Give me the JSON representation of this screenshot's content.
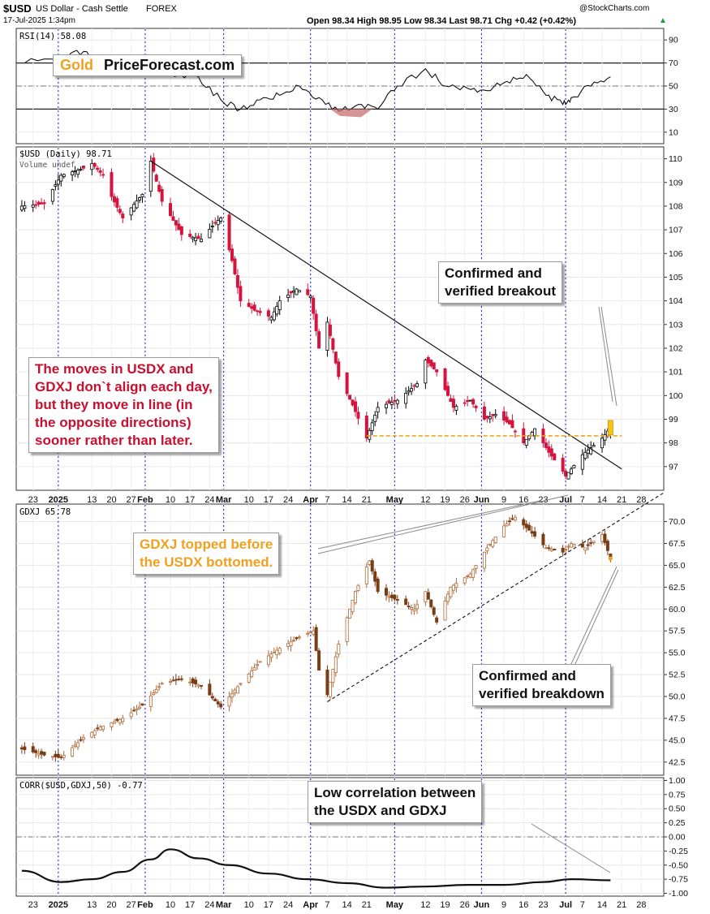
{
  "header": {
    "symbol": "$USD",
    "name": "US Dollar - Cash Settle",
    "exchange": "FOREX",
    "datetime": "17-Jul-2025 1:34pm",
    "source": "@StockCharts.com",
    "quote": "Open 98.34  High 98.95  Low 98.34  Last 98.71  Chg +0.42 (+0.42%)",
    "quote_arrow": "▲"
  },
  "logo": {
    "gold": "Gold",
    "site": "PriceForecast.com"
  },
  "annotations": {
    "moves": "The moves in USDX and\nGDXJ don`t align each day,\nbut they move in line (in\nthe opposite directions)\nsooner rather than later.",
    "breakout": "Confirmed and\nverified breakout",
    "gdxj_topped": "GDXJ topped before\nthe USDX bottomed.",
    "breakdown": "Confirmed and\nverified breakdown",
    "corr_note": "Low correlation between\nthe USDX and GDXJ"
  },
  "colors": {
    "up": "#000000",
    "down": "#d4143c",
    "gdxj_up": "#b06a38",
    "gdxj_down": "#7a3c14",
    "dashed_support": "#f0a020",
    "vline": "#2a2ae0",
    "moves_text": "#c8102e",
    "gdxj_text": "#f0a020",
    "rsi_fill": "#c87070"
  },
  "chart_data": [
    {
      "type": "line",
      "panel": "RSI",
      "title": "RSI(14) 58.08",
      "ylim": [
        0,
        100
      ],
      "yticks": [
        10,
        30,
        50,
        70,
        90
      ],
      "reference_lines": [
        30,
        50,
        70
      ],
      "x": [
        "2024-12-20",
        "2025-01-03",
        "2025-01-10",
        "2025-01-17",
        "2025-01-24",
        "2025-02-03",
        "2025-02-10",
        "2025-02-20",
        "2025-02-28",
        "2025-03-07",
        "2025-03-14",
        "2025-03-21",
        "2025-03-28",
        "2025-04-04",
        "2025-04-11",
        "2025-04-18",
        "2025-04-25",
        "2025-05-02",
        "2025-05-12",
        "2025-05-19",
        "2025-05-27",
        "2025-06-03",
        "2025-06-10",
        "2025-06-17",
        "2025-06-24",
        "2025-06-30",
        "2025-07-03",
        "2025-07-10",
        "2025-07-17"
      ],
      "values": [
        70,
        74,
        80,
        66,
        64,
        69,
        60,
        58,
        38,
        30,
        38,
        42,
        50,
        40,
        28,
        34,
        30,
        50,
        65,
        50,
        48,
        46,
        54,
        60,
        42,
        34,
        40,
        50,
        58
      ]
    },
    {
      "type": "candlestick",
      "panel": "$USD",
      "title": "$USD (Daily) 98.71",
      "subtitle": "Volume undef",
      "ylim": [
        96,
        110.5
      ],
      "yticks": [
        97,
        98,
        99,
        100,
        101,
        102,
        103,
        104,
        105,
        106,
        107,
        108,
        109,
        110
      ],
      "path": [
        [
          "2024-12-19",
          108.0
        ],
        [
          "2024-12-27",
          108.1
        ],
        [
          "2025-01-02",
          109.3
        ],
        [
          "2025-01-10",
          109.6
        ],
        [
          "2025-01-13",
          109.8
        ],
        [
          "2025-01-17",
          109.3
        ],
        [
          "2025-01-20",
          108.4
        ],
        [
          "2025-01-24",
          107.5
        ],
        [
          "2025-01-31",
          108.5
        ],
        [
          "2025-02-03",
          109.9
        ],
        [
          "2025-02-07",
          108.2
        ],
        [
          "2025-02-14",
          106.8
        ],
        [
          "2025-02-21",
          106.6
        ],
        [
          "2025-02-26",
          107.3
        ],
        [
          "2025-02-28",
          107.5
        ],
        [
          "2025-03-04",
          105.7
        ],
        [
          "2025-03-07",
          104.0
        ],
        [
          "2025-03-12",
          103.6
        ],
        [
          "2025-03-18",
          103.3
        ],
        [
          "2025-03-21",
          104.0
        ],
        [
          "2025-03-27",
          104.5
        ],
        [
          "2025-04-01",
          104.2
        ],
        [
          "2025-04-04",
          102.0
        ],
        [
          "2025-04-07",
          103.1
        ],
        [
          "2025-04-11",
          100.8
        ],
        [
          "2025-04-16",
          99.6
        ],
        [
          "2025-04-21",
          98.2
        ],
        [
          "2025-04-25",
          99.5
        ],
        [
          "2025-05-02",
          99.8
        ],
        [
          "2025-05-09",
          100.5
        ],
        [
          "2025-05-12",
          101.5
        ],
        [
          "2025-05-16",
          101.0
        ],
        [
          "2025-05-22",
          99.5
        ],
        [
          "2025-05-28",
          99.8
        ],
        [
          "2025-06-02",
          99.0
        ],
        [
          "2025-06-06",
          99.2
        ],
        [
          "2025-06-11",
          98.8
        ],
        [
          "2025-06-16",
          98.0
        ],
        [
          "2025-06-20",
          98.6
        ],
        [
          "2025-06-25",
          97.6
        ],
        [
          "2025-06-30",
          96.8
        ],
        [
          "2025-07-01",
          96.6
        ],
        [
          "2025-07-07",
          97.5
        ],
        [
          "2025-07-10",
          97.8
        ],
        [
          "2025-07-14",
          98.2
        ],
        [
          "2025-07-16",
          98.5
        ],
        [
          "2025-07-17",
          98.71
        ]
      ],
      "trendline": [
        [
          "2025-02-03",
          109.9
        ],
        [
          "2025-07-21",
          96.9
        ]
      ],
      "support_line": {
        "value": 98.3,
        "from": "2025-04-21",
        "to": "2025-07-21"
      }
    },
    {
      "type": "candlestick",
      "panel": "GDXJ",
      "title": "GDXJ 65.78",
      "ylim": [
        41,
        72
      ],
      "yticks": [
        42.5,
        45.0,
        47.5,
        50.0,
        52.5,
        55.0,
        57.5,
        60.0,
        62.5,
        65.0,
        67.5,
        70.0
      ],
      "path": [
        [
          "2024-12-19",
          44.0
        ],
        [
          "2024-12-27",
          43.3
        ],
        [
          "2025-01-02",
          43.0
        ],
        [
          "2025-01-10",
          45.3
        ],
        [
          "2025-01-16",
          46.5
        ],
        [
          "2025-01-24",
          47.5
        ],
        [
          "2025-01-31",
          49.0
        ],
        [
          "2025-02-07",
          51.5
        ],
        [
          "2025-02-14",
          52.0
        ],
        [
          "2025-02-21",
          51.2
        ],
        [
          "2025-02-28",
          48.8
        ],
        [
          "2025-03-07",
          51.5
        ],
        [
          "2025-03-14",
          54.0
        ],
        [
          "2025-03-21",
          55.5
        ],
        [
          "2025-03-28",
          56.8
        ],
        [
          "2025-04-02",
          57.5
        ],
        [
          "2025-04-04",
          53.0
        ],
        [
          "2025-04-07",
          50.2
        ],
        [
          "2025-04-11",
          56.0
        ],
        [
          "2025-04-17",
          62.0
        ],
        [
          "2025-04-22",
          65.5
        ],
        [
          "2025-04-25",
          62.0
        ],
        [
          "2025-05-02",
          61.0
        ],
        [
          "2025-05-08",
          60.0
        ],
        [
          "2025-05-12",
          62.0
        ],
        [
          "2025-05-16",
          58.5
        ],
        [
          "2025-05-21",
          62.5
        ],
        [
          "2025-05-28",
          64.0
        ],
        [
          "2025-06-03",
          67.0
        ],
        [
          "2025-06-09",
          69.5
        ],
        [
          "2025-06-13",
          70.5
        ],
        [
          "2025-06-18",
          69.0
        ],
        [
          "2025-06-24",
          67.0
        ],
        [
          "2025-06-30",
          66.5
        ],
        [
          "2025-07-03",
          67.5
        ],
        [
          "2025-07-08",
          67.0
        ],
        [
          "2025-07-14",
          68.5
        ],
        [
          "2025-07-17",
          65.78
        ]
      ],
      "trendline": [
        [
          "2025-04-07",
          49.4
        ],
        [
          "2025-08-01",
          72.5
        ]
      ]
    },
    {
      "type": "line",
      "panel": "CORR",
      "title": "CORR($USD,GDXJ,50) -0.77",
      "ylim": [
        -1.05,
        1.05
      ],
      "yticks": [
        1.0,
        0.75,
        0.5,
        0.25,
        0.0,
        -0.25,
        -0.5,
        -0.75,
        -1.0
      ],
      "reference_lines": [
        0
      ],
      "x": [
        "2024-12-19",
        "2025-01-02",
        "2025-01-13",
        "2025-01-24",
        "2025-02-03",
        "2025-02-10",
        "2025-02-20",
        "2025-03-03",
        "2025-03-17",
        "2025-03-31",
        "2025-04-14",
        "2025-04-28",
        "2025-05-12",
        "2025-05-27",
        "2025-06-09",
        "2025-06-23",
        "2025-07-03",
        "2025-07-17"
      ],
      "values": [
        -0.6,
        -0.8,
        -0.75,
        -0.62,
        -0.4,
        -0.22,
        -0.38,
        -0.5,
        -0.65,
        -0.75,
        -0.82,
        -0.9,
        -0.88,
        -0.85,
        -0.85,
        -0.8,
        -0.75,
        -0.77
      ]
    }
  ],
  "x_axis_labels": [
    "23",
    "2025",
    "13",
    "20",
    "27",
    "Feb",
    "10",
    "17",
    "24",
    "Mar",
    "10",
    "17",
    "24",
    "Apr",
    "7",
    "14",
    "21",
    "May",
    "12",
    "19",
    "26",
    "Jun",
    "9",
    "16",
    "23",
    "Jul",
    "7",
    "14",
    "21",
    "28"
  ],
  "x_axis_dates": [
    "2024-12-23",
    "2025-01-01",
    "2025-01-13",
    "2025-01-20",
    "2025-01-27",
    "2025-02-01",
    "2025-02-10",
    "2025-02-17",
    "2025-02-24",
    "2025-03-01",
    "2025-03-10",
    "2025-03-17",
    "2025-03-24",
    "2025-04-01",
    "2025-04-07",
    "2025-04-14",
    "2025-04-21",
    "2025-05-01",
    "2025-05-12",
    "2025-05-19",
    "2025-05-26",
    "2025-06-01",
    "2025-06-09",
    "2025-06-16",
    "2025-06-23",
    "2025-07-01",
    "2025-07-07",
    "2025-07-14",
    "2025-07-21",
    "2025-07-28"
  ],
  "month_markers": [
    "2025-01-01",
    "2025-02-01",
    "2025-03-01",
    "2025-04-01",
    "2025-05-01",
    "2025-06-01",
    "2025-07-01"
  ]
}
